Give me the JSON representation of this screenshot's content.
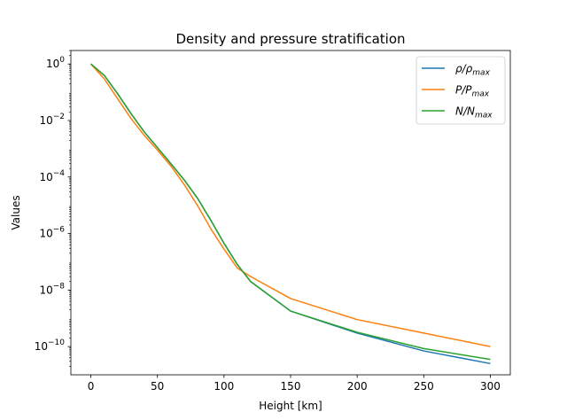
{
  "chart_data": {
    "type": "line",
    "title": "Density and pressure stratification",
    "xlabel": "Height [km]",
    "ylabel": "Values",
    "xlim": [
      -15,
      315
    ],
    "ylim": [
      1e-11,
      3
    ],
    "yscale": "log",
    "grid": false,
    "legend_position": "top-right",
    "x_ticks": [
      0,
      50,
      100,
      150,
      200,
      250,
      300
    ],
    "y_ticks": [
      1,
      0.01,
      0.0001,
      1e-06,
      1e-08,
      1e-10
    ],
    "y_tick_labels": [
      {
        "base": "10",
        "exp": "0"
      },
      {
        "base": "10",
        "exp": "−2"
      },
      {
        "base": "10",
        "exp": "−4"
      },
      {
        "base": "10",
        "exp": "−6"
      },
      {
        "base": "10",
        "exp": "−8"
      },
      {
        "base": "10",
        "exp": "−10"
      }
    ],
    "series": [
      {
        "name": "ρ/ρmax",
        "legend": {
          "main": "ρ/ρ",
          "sub": "max"
        },
        "color": "#1f77b4",
        "x": [
          0,
          10,
          20,
          30,
          40,
          50,
          60,
          70,
          80,
          90,
          100,
          110,
          120,
          150,
          200,
          250,
          300
        ],
        "y": [
          1.0,
          0.4,
          0.09,
          0.018,
          0.004,
          0.0011,
          0.0003,
          8e-05,
          1.8e-05,
          3e-06,
          4.5e-07,
          8e-08,
          2e-08,
          1.8e-09,
          3e-10,
          7e-11,
          2.5e-11
        ]
      },
      {
        "name": "P/Pmax",
        "legend": {
          "main": "P/P",
          "sub": "max"
        },
        "color": "#ff7f0e",
        "x": [
          0,
          10,
          20,
          30,
          40,
          50,
          60,
          70,
          80,
          90,
          100,
          110,
          120,
          150,
          200,
          250,
          300
        ],
        "y": [
          1.0,
          0.3,
          0.06,
          0.012,
          0.003,
          0.0009,
          0.00025,
          5.5e-05,
          1e-05,
          1.5e-06,
          2.8e-07,
          6e-08,
          3e-08,
          5e-09,
          9e-10,
          3e-10,
          1e-10
        ]
      },
      {
        "name": "N/Nmax",
        "legend": {
          "main": "N/N",
          "sub": "max"
        },
        "color": "#2ca02c",
        "x": [
          0,
          10,
          20,
          30,
          40,
          50,
          60,
          70,
          80,
          90,
          100,
          110,
          120,
          150,
          200,
          250,
          300
        ],
        "y": [
          1.0,
          0.4,
          0.09,
          0.018,
          0.004,
          0.0011,
          0.0003,
          8e-05,
          1.8e-05,
          3e-06,
          4.5e-07,
          8e-08,
          2e-08,
          1.8e-09,
          3.2e-10,
          8.5e-11,
          3.5e-11
        ]
      }
    ]
  }
}
